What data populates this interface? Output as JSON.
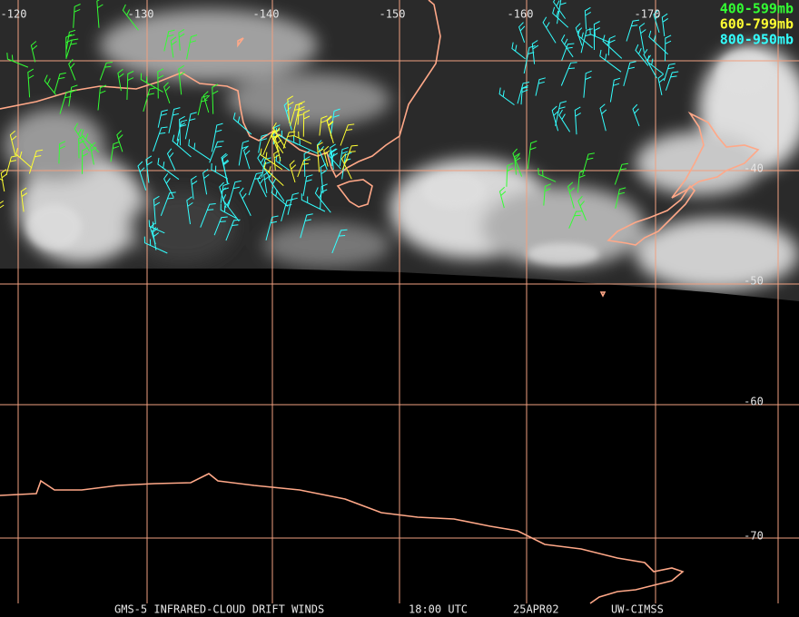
{
  "map": {
    "longitude_labels": [
      "-120",
      "-130",
      "-140",
      "-150",
      "-160",
      "-170"
    ],
    "latitude_labels": [
      "-40",
      "-50",
      "-60",
      "-70"
    ],
    "legend": [
      {
        "label": "400-599mb",
        "color": "#33ff33"
      },
      {
        "label": "600-799mb",
        "color": "#ffff33"
      },
      {
        "label": "800-950mb",
        "color": "#33ffff"
      }
    ],
    "footer": [
      "GMS-5 INFRARED-CLOUD DRIFT WINDS",
      "18:00 UTC",
      "25APR02",
      "UW-CIMSS"
    ]
  }
}
